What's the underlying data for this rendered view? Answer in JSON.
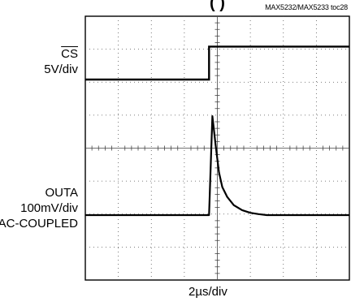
{
  "title_fragment": "(                 )",
  "figure_id": "MAX5232/MAX5233 toc28",
  "channels": {
    "cs": {
      "name": "CS",
      "scale": "5V/div"
    },
    "outa": {
      "name": "OUTA",
      "scale": "100mV/div",
      "coupling": "AC-COUPLED"
    }
  },
  "time_scale": "2µs/div",
  "chart_data": {
    "type": "line",
    "title": "",
    "xlabel": "2µs/div",
    "ylabel": "",
    "x_divisions": 8,
    "y_divisions": 8,
    "grid": true,
    "xlim": [
      0,
      16
    ],
    "series": [
      {
        "name": "CS",
        "unit": "V",
        "x": [
          0,
          7.5,
          7.5,
          16
        ],
        "values": [
          0,
          0,
          5,
          5
        ]
      },
      {
        "name": "OUTA",
        "unit": "mV",
        "x": [
          0,
          7.5,
          7.7,
          7.9,
          8.1,
          8.3,
          8.6,
          9.0,
          9.5,
          10.0,
          10.5,
          11.0,
          16
        ],
        "values": [
          0,
          0,
          300,
          210,
          130,
          85,
          55,
          30,
          15,
          7,
          3,
          0,
          0
        ]
      }
    ]
  }
}
